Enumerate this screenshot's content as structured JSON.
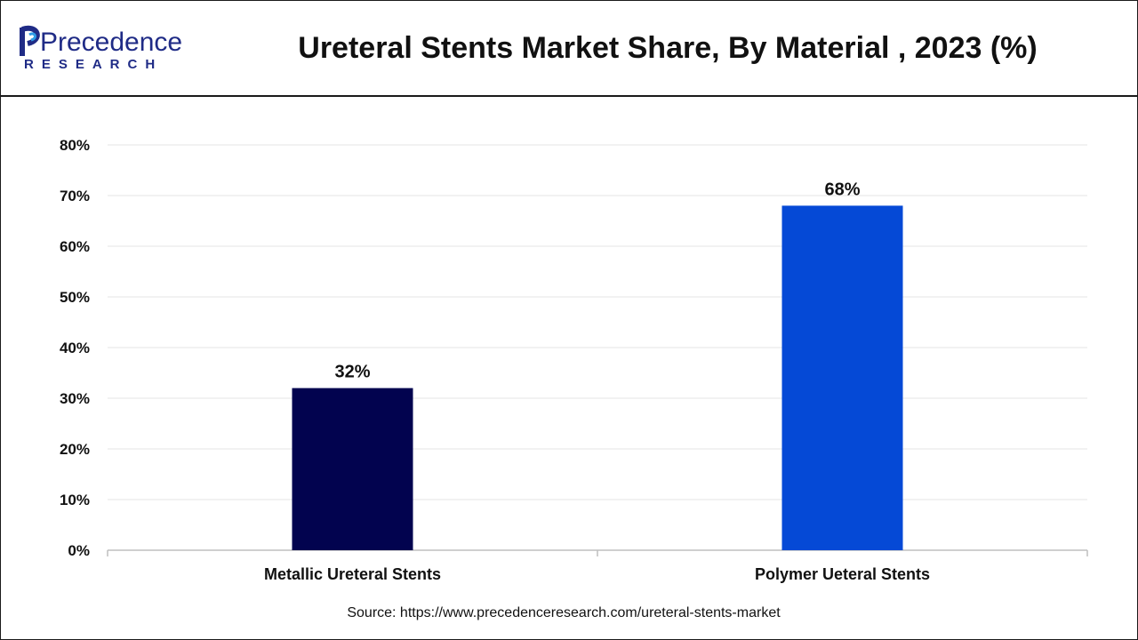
{
  "header": {
    "title": "Ureteral Stents Market Share, By Material , 2023 (%)",
    "logo_word": "Precedence",
    "logo_sub": "RESEARCH"
  },
  "chart_data": {
    "type": "bar",
    "title": "Ureteral Stents Market Share, By Material , 2023 (%)",
    "categories": [
      "Metallic Ureteral Stents",
      "Polymer Ueteral Stents"
    ],
    "values": [
      32,
      68
    ],
    "value_labels": [
      "32%",
      "68%"
    ],
    "bar_colors": [
      "#02034f",
      "#0549d6"
    ],
    "yticks": [
      "0%",
      "10%",
      "20%",
      "30%",
      "40%",
      "50%",
      "60%",
      "70%",
      "80%"
    ],
    "ylim": [
      0,
      80
    ],
    "grid": true,
    "legend": "none",
    "xlabel": "",
    "ylabel": ""
  },
  "footer": {
    "source": "Source: https://www.precedenceresearch.com/ureteral-stents-market"
  },
  "colors": {
    "logo_blue": "#1f2b86",
    "logo_accent": "#2e9be6"
  }
}
